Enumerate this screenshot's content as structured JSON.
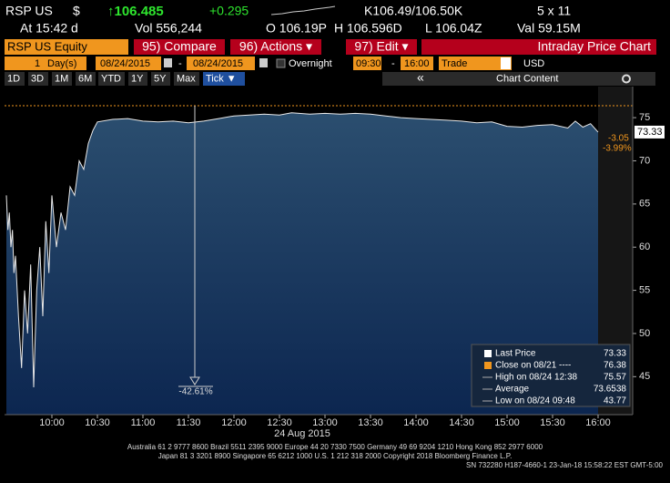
{
  "header": {
    "ticker": "RSP US",
    "currency": "$",
    "last": "↑106.485",
    "change": "+0.295",
    "bidask": "K106.49/106.50K",
    "size": "5 x 11",
    "time": "At 15:42 d",
    "vol": "Vol 556,244",
    "open": "O 106.19P",
    "high": "H 106.596D",
    "low": "L 106.04Z",
    "val": "Val 59.15M"
  },
  "toolbar": {
    "security": "RSP US Equity",
    "buttons": [
      "95) Compare",
      "96) Actions ▾",
      "97) Edit ▾"
    ],
    "title": "Intraday Price Chart"
  },
  "settings": {
    "count": "1",
    "unit": "Day(s)",
    "start": "08/24/2015",
    "dash": "-",
    "end": "08/24/2015",
    "overnight": "Overnight",
    "from": "09:30",
    "to": "16:00",
    "source": "Trade",
    "currency": "USD"
  },
  "periods": [
    "1D",
    "3D",
    "1M",
    "6M",
    "YTD",
    "1Y",
    "5Y",
    "Max",
    "Tick ▼"
  ],
  "chart_tools": {
    "back": "«",
    "content": "Chart Content"
  },
  "chart_data": {
    "type": "line",
    "xlabel": "24 Aug 2015",
    "x": [
      "09:30",
      "09:31",
      "09:32",
      "09:33",
      "09:34",
      "09:35",
      "09:36",
      "09:38",
      "09:40",
      "09:42",
      "09:44",
      "09:46",
      "09:48",
      "09:50",
      "09:52",
      "09:54",
      "09:56",
      "09:58",
      "10:00",
      "10:03",
      "10:06",
      "10:09",
      "10:12",
      "10:15",
      "10:18",
      "10:21",
      "10:24",
      "10:27",
      "10:30",
      "10:40",
      "10:50",
      "11:00",
      "11:10",
      "11:20",
      "11:30",
      "11:40",
      "11:50",
      "12:00",
      "12:10",
      "12:20",
      "12:30",
      "12:38",
      "12:50",
      "13:00",
      "13:10",
      "13:20",
      "13:30",
      "13:40",
      "13:50",
      "14:00",
      "14:10",
      "14:20",
      "14:30",
      "14:40",
      "14:50",
      "15:00",
      "15:10",
      "15:20",
      "15:30",
      "15:40",
      "15:45",
      "15:50",
      "15:55",
      "16:00"
    ],
    "values": [
      66,
      62,
      64,
      60,
      62,
      57,
      59,
      52,
      46,
      55,
      50,
      58,
      43.77,
      55,
      60,
      52,
      63,
      57,
      66,
      60,
      64,
      62,
      67,
      66,
      70,
      69,
      72,
      73.5,
      74.5,
      74.8,
      74.9,
      74.6,
      74.5,
      74.6,
      74.4,
      74.6,
      74.9,
      75.2,
      75.3,
      75.4,
      75.3,
      75.57,
      75.4,
      75.5,
      75.4,
      75.5,
      75.4,
      75.2,
      75.0,
      74.9,
      74.8,
      74.7,
      74.6,
      74.4,
      74.5,
      74.0,
      73.9,
      74.1,
      74.2,
      73.8,
      74.6,
      73.9,
      74.3,
      73.33
    ],
    "xlim": [
      "09:30",
      "16:00"
    ],
    "xticks": [
      "10:00",
      "10:30",
      "11:00",
      "11:30",
      "12:00",
      "12:30",
      "13:00",
      "13:30",
      "14:00",
      "14:30",
      "15:00",
      "15:30",
      "16:00"
    ],
    "ylim": [
      40.6,
      78.6
    ],
    "yticks": [
      45,
      50,
      55,
      60,
      65,
      70,
      75
    ],
    "reference": 76.38,
    "last_label": "73.33",
    "change_labels": [
      "-3.05",
      "-3.99%"
    ],
    "annotation": "-42.61%",
    "legend": [
      {
        "label": "Last Price",
        "value": 73.33
      },
      {
        "label": "Close on 08/21 ----",
        "value": 76.38
      },
      {
        "label": "High on 08/24 12:38",
        "value": 75.57
      },
      {
        "label": "Average",
        "value": 73.6538
      },
      {
        "label": "Low on 08/24 09:48",
        "value": 43.77
      }
    ]
  },
  "footer": [
    "Australia 61 2 9777 8600 Brazil 5511 2395 9000 Europe 44 20 7330 7500 Germany 49 69 9204 1210 Hong Kong 852 2977 6000",
    "Japan 81 3 3201 8900        Singapore 65 6212 1000        U.S. 1 212 318 2000        Copyright 2018 Bloomberg Finance L.P.",
    "SN 732280 H187-4660-1 23-Jan-18 15:58:22 EST  GMT-5:00"
  ]
}
